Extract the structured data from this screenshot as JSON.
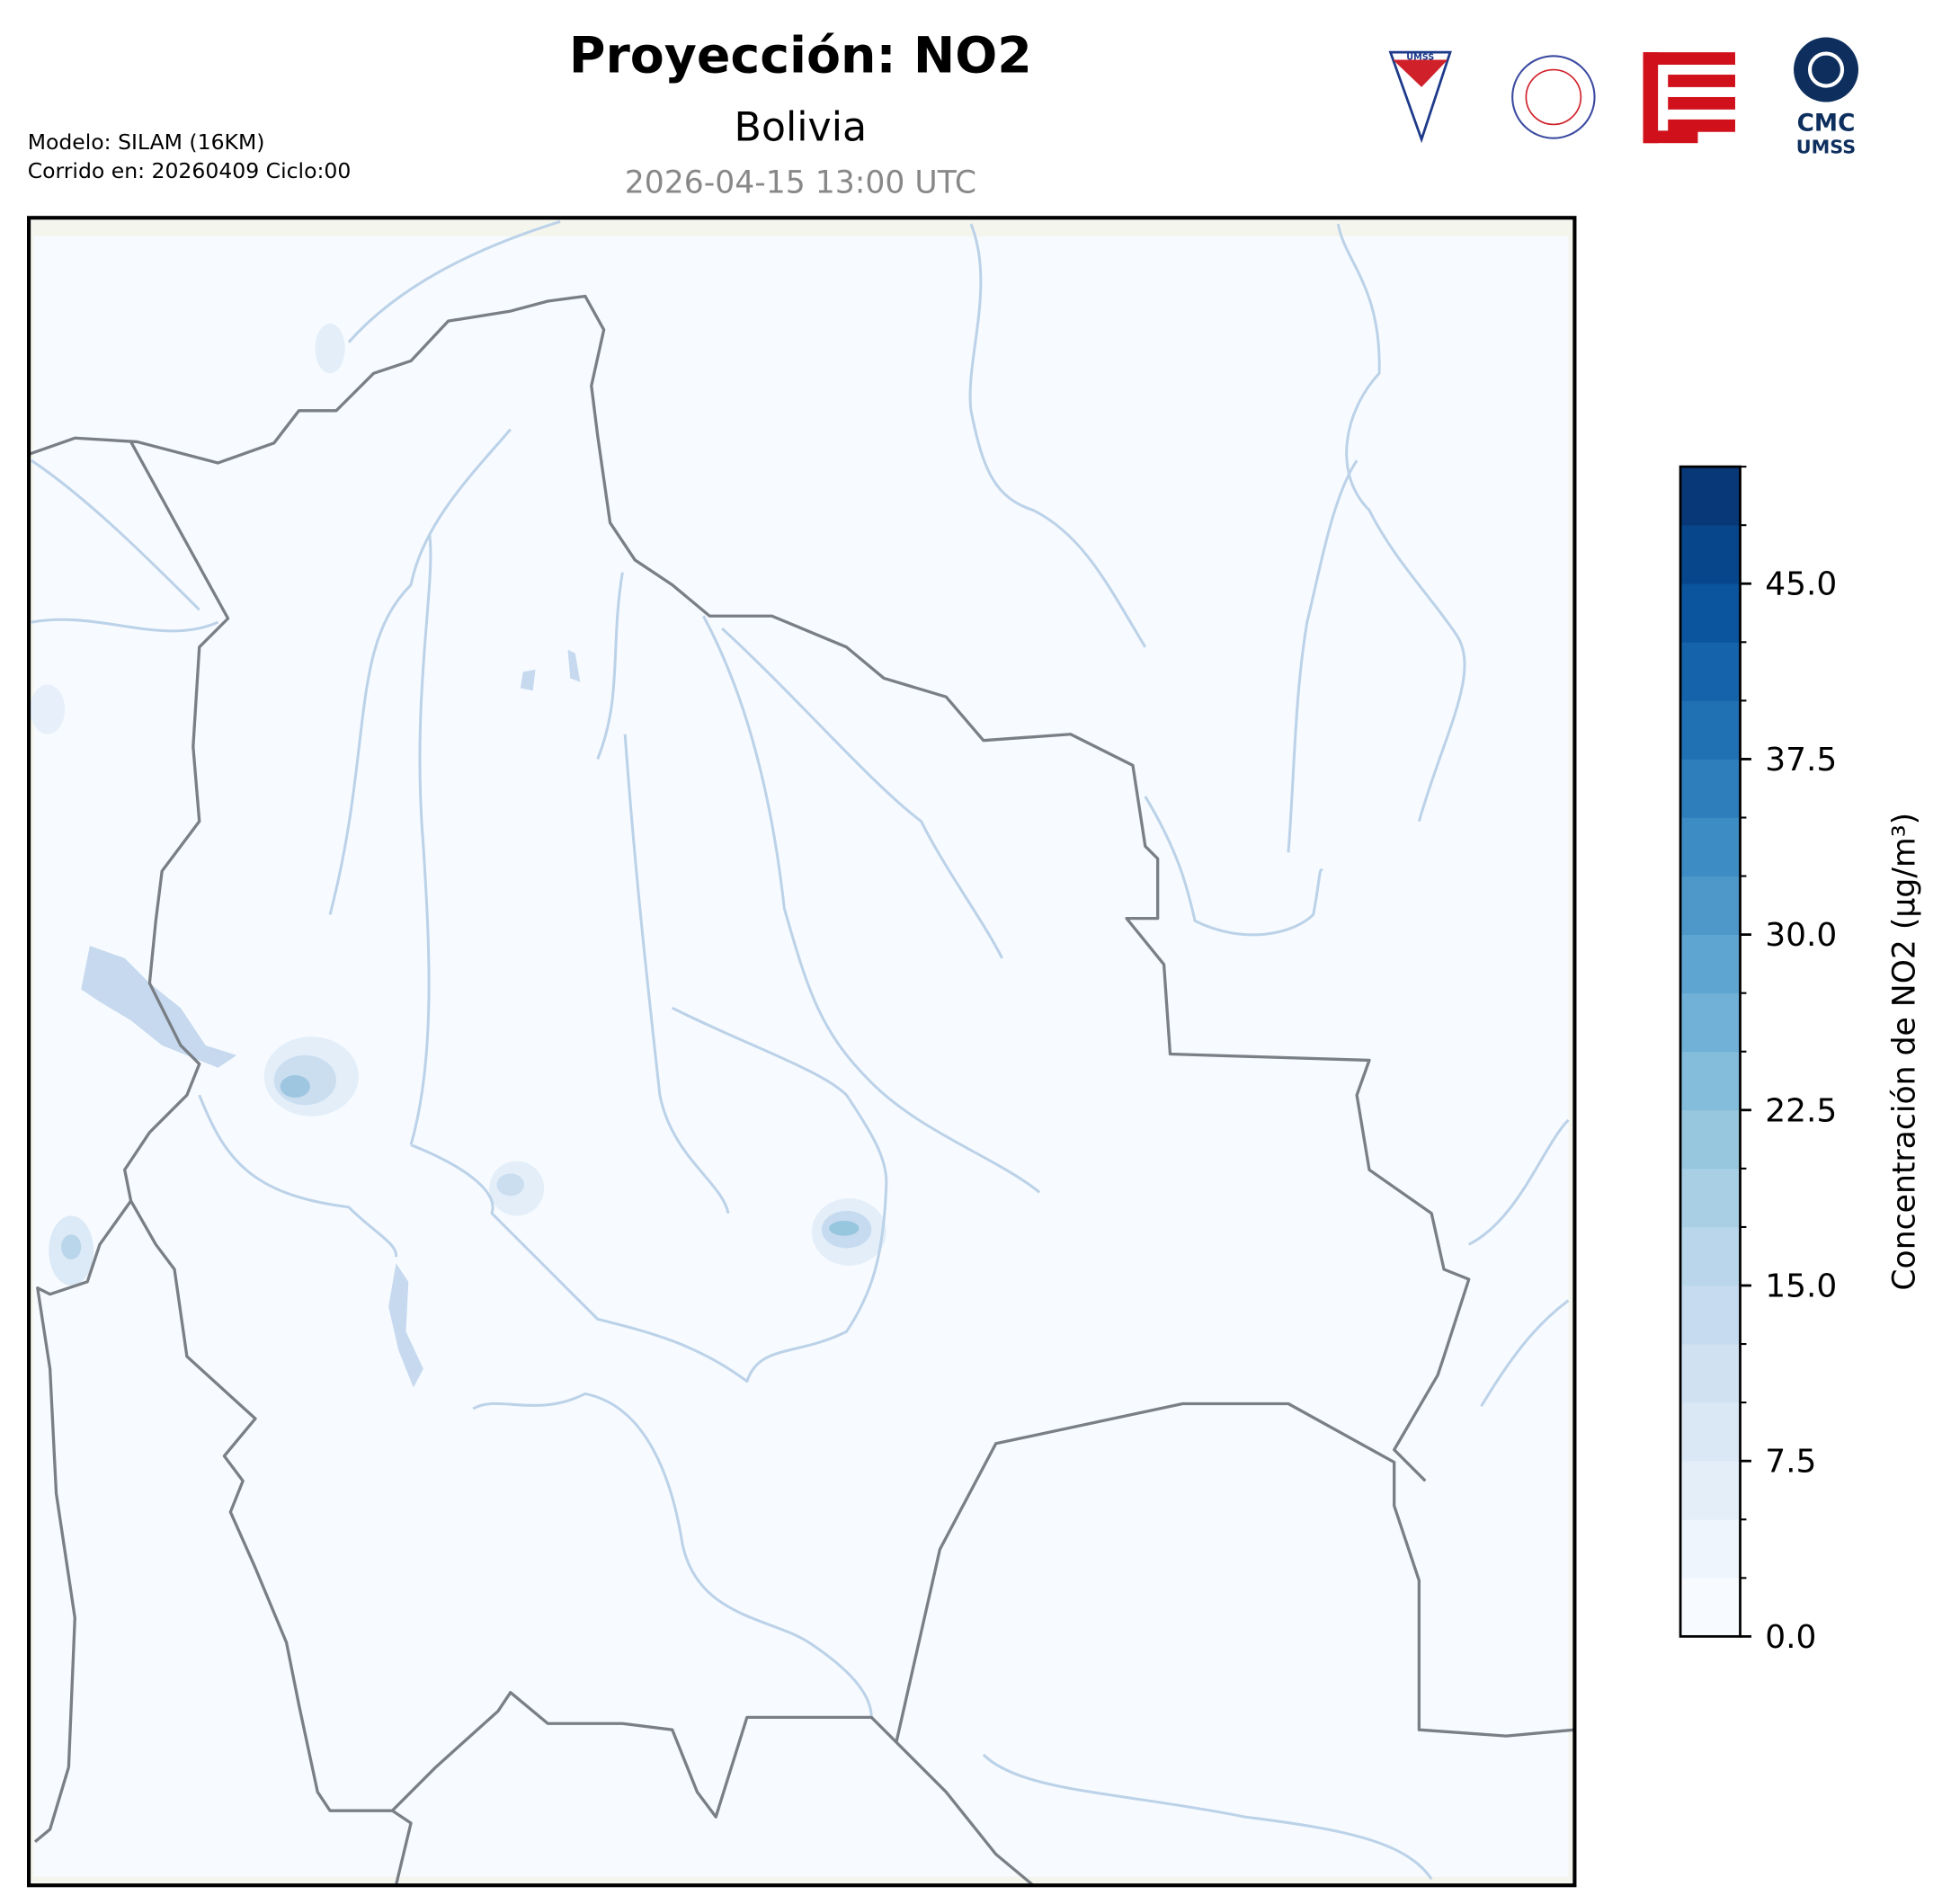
{
  "header": {
    "title": "Proyección: NO2",
    "subtitle": "Bolivia",
    "datetime": "2026-04-15 13:00 UTC",
    "model": "Modelo: SILAM (16KM)",
    "run": "Corrido en: 20260409 Ciclo:00",
    "logo_text": [
      "UMSS",
      "CMC",
      "UMSS"
    ]
  },
  "chart_data": {
    "type": "contour-map",
    "colorbar": {
      "label": "Concentración de NO2 (µg/m³)",
      "lim": [
        0,
        50
      ],
      "levels": [
        0,
        2.5,
        5,
        7.5,
        10,
        12.5,
        15,
        17.5,
        20,
        22.5,
        25,
        27.5,
        30,
        32.5,
        35,
        37.5,
        40,
        42.5,
        45,
        47.5,
        50
      ],
      "colors": [
        "#f7fbff",
        "#eef5fc",
        "#e4eef9",
        "#dae8f5",
        "#d0e2f2",
        "#c6dbef",
        "#b9d6ea",
        "#a9cfe5",
        "#97c6df",
        "#84bcdb",
        "#71b1d7",
        "#5ea5d1",
        "#4d98c9",
        "#3d8cc3",
        "#2e7ebc",
        "#2070b4",
        "#1563aa",
        "#0a559e",
        "#08468b",
        "#083877",
        "#081d4a"
      ],
      "ticks": [
        {
          "value": 0,
          "label": "0.0"
        },
        7.5,
        {
          "value": 15,
          "label": "15.0"
        },
        22.5,
        {
          "value": 30,
          "label": "30.0"
        },
        37.5,
        {
          "value": 45,
          "label": "45.0"
        }
      ]
    }
  }
}
